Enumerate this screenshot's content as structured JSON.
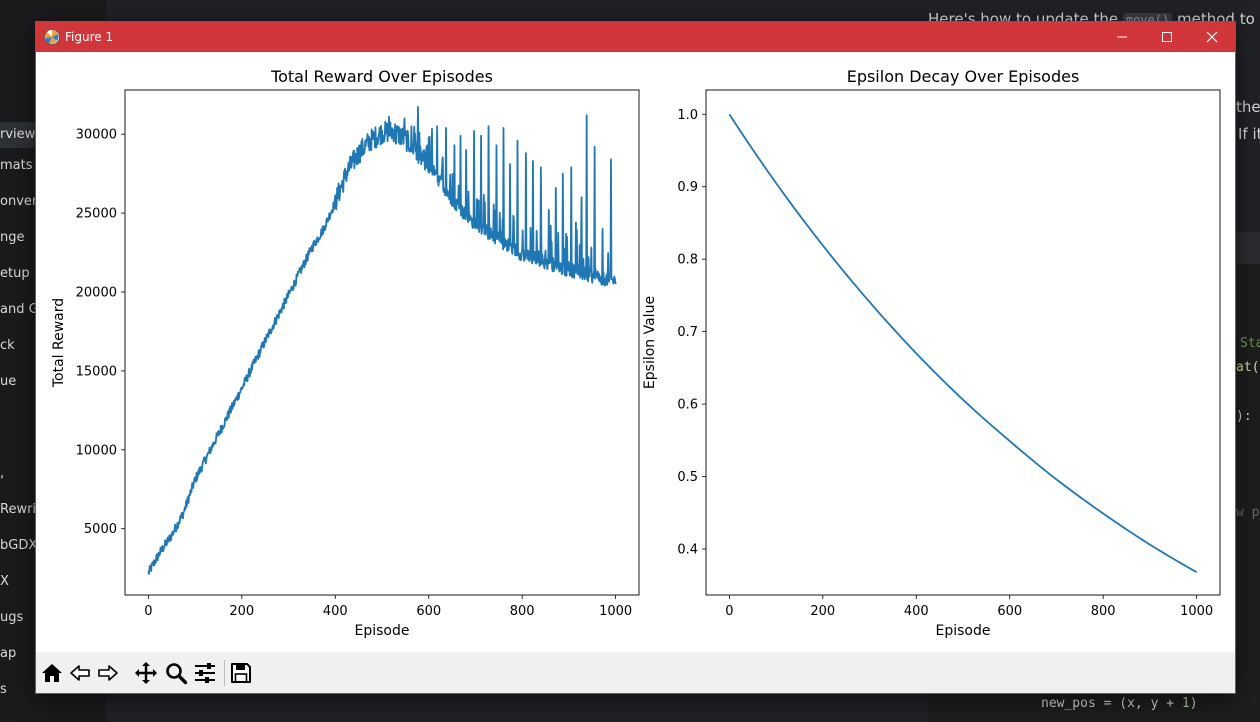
{
  "window": {
    "title": "Figure 1"
  },
  "background": {
    "sidebar_items": [
      "rview",
      "mats",
      "onver",
      "nge",
      "etup",
      "and G",
      "ck",
      "ue",
      ",",
      "Rewrite",
      "bGDX",
      "X",
      "ugs",
      "ap",
      "s"
    ],
    "top_text_before": "Here's how to update the",
    "top_text_code": "move()",
    "top_text_after": "method to p",
    "right_text_1": "the",
    "right_text_2": "If it",
    "code_frag_1": "Sta",
    "code_frag_2": "at(",
    "code_frag_3": "):",
    "code_frag_4": "w po",
    "bottom_code_prefix": "new_pos = (x, y + ",
    "bottom_code_num": "1",
    "bottom_code_suffix": ")"
  },
  "toolbar": {
    "icons": [
      "home-icon",
      "back-arrow-icon",
      "forward-arrow-icon",
      "pan-icon",
      "zoom-icon",
      "configure-subplots-icon",
      "save-icon"
    ]
  },
  "colors": {
    "titlebar": "#d1363a",
    "series": "#1f77b4"
  },
  "chart_data": [
    {
      "type": "line",
      "title": "Total Reward Over Episodes",
      "xlabel": "Episode",
      "ylabel": "Total Reward",
      "xlim": [
        -50,
        1050
      ],
      "ylim": [
        800,
        32800
      ],
      "xticks": [
        0,
        200,
        400,
        600,
        800,
        1000
      ],
      "yticks": [
        5000,
        10000,
        15000,
        20000,
        25000,
        30000
      ],
      "grid": false,
      "series": [
        {
          "x": [
            0,
            25,
            50,
            75,
            100,
            150,
            200,
            250,
            300,
            350,
            375,
            400,
            425,
            450,
            475,
            500,
            525,
            550,
            575,
            600,
            625,
            650,
            675,
            700,
            750,
            800,
            850,
            900,
            950,
            1000
          ],
          "y": [
            2200,
            3500,
            4600,
            6000,
            8100,
            11000,
            13900,
            16900,
            19800,
            22800,
            24000,
            25700,
            27600,
            28800,
            29600,
            30100,
            30200,
            29700,
            28800,
            28000,
            27000,
            25900,
            25000,
            24300,
            23300,
            22400,
            21900,
            21400,
            21000,
            20700
          ],
          "spikes": [
            [
              515,
              31100
            ],
            [
              530,
              29400
            ],
            [
              548,
              31000
            ],
            [
              563,
              30500
            ],
            [
              580,
              30100
            ],
            [
              600,
              29800
            ],
            [
              618,
              30500
            ],
            [
              637,
              30400
            ],
            [
              655,
              29300
            ],
            [
              668,
              29900
            ],
            [
              680,
              29000
            ],
            [
              697,
              30200
            ],
            [
              712,
              29900
            ],
            [
              728,
              30500
            ],
            [
              745,
              29300
            ],
            [
              760,
              30400
            ],
            [
              774,
              28100
            ],
            [
              790,
              29600
            ],
            [
              808,
              28800
            ],
            [
              823,
              28300
            ],
            [
              840,
              27900
            ],
            [
              857,
              25200
            ],
            [
              872,
              26600
            ],
            [
              887,
              27500
            ],
            [
              905,
              27900
            ],
            [
              915,
              24400
            ],
            [
              927,
              26000
            ],
            [
              938,
              31200
            ],
            [
              955,
              29200
            ],
            [
              972,
              24000
            ],
            [
              990,
              28400
            ]
          ]
        }
      ]
    },
    {
      "type": "line",
      "title": "Epsilon Decay Over Episodes",
      "xlabel": "Episode",
      "ylabel": "Epsilon Value",
      "xlim": [
        -50,
        1050
      ],
      "ylim": [
        0.3365,
        1.0335
      ],
      "xticks": [
        0,
        200,
        400,
        600,
        800,
        1000
      ],
      "yticks": [
        0.4,
        0.5,
        0.6,
        0.7,
        0.8,
        0.9,
        1.0
      ],
      "grid": false,
      "series": [
        {
          "x": [
            0,
            100,
            200,
            300,
            400,
            500,
            600,
            700,
            800,
            900,
            1000
          ],
          "y": [
            1.0,
            0.905,
            0.819,
            0.741,
            0.67,
            0.606,
            0.549,
            0.496,
            0.449,
            0.406,
            0.368
          ]
        }
      ]
    }
  ]
}
